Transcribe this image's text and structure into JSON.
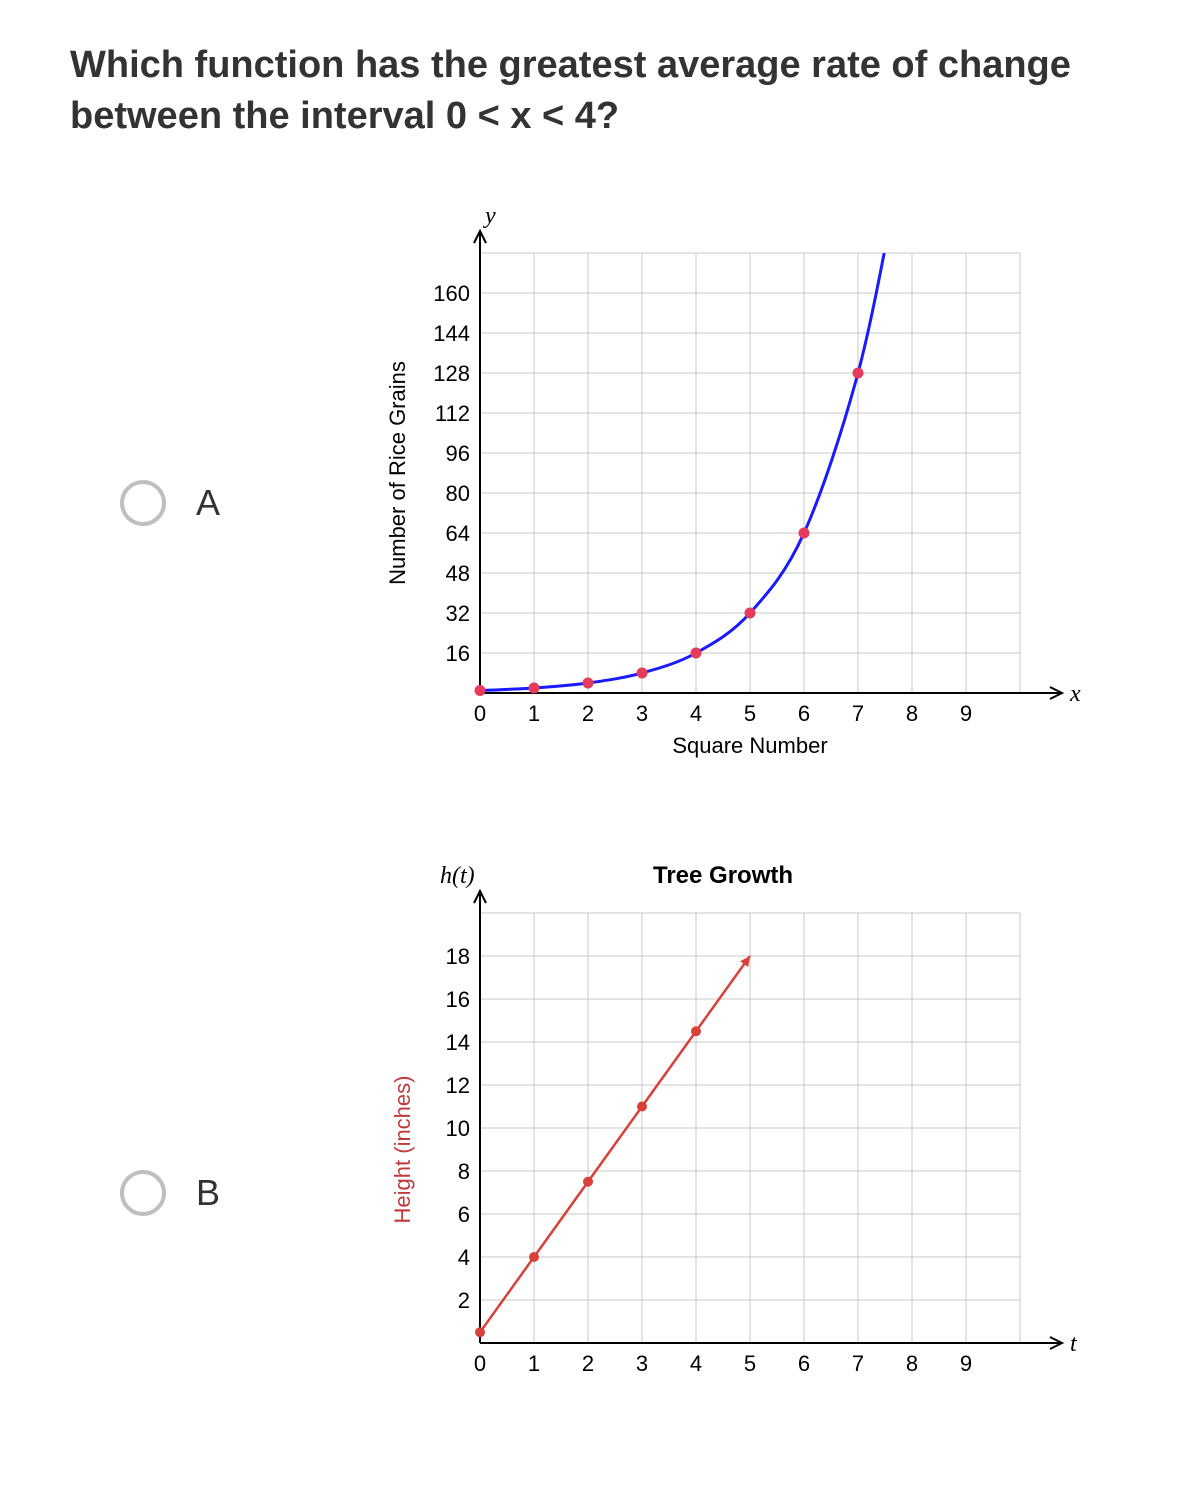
{
  "question": "Which function has the greatest average rate of change between the interval 0 < x < 4?",
  "options": {
    "A": {
      "label": "A"
    },
    "B": {
      "label": "B"
    }
  },
  "chartA": {
    "type": "line",
    "title": "",
    "y_axis_label_var": "y",
    "x_axis_label_var": "x",
    "y_axis_title": "Number of Rice Grains",
    "x_axis_title": "Square Number",
    "y_ticks": [
      16,
      32,
      48,
      64,
      80,
      96,
      112,
      128,
      144,
      160
    ],
    "x_ticks": [
      0,
      1,
      2,
      3,
      4,
      5,
      6,
      7,
      8,
      9
    ],
    "xlim": [
      0,
      10
    ],
    "ylim": [
      0,
      176
    ],
    "line_color": "#1a1aff",
    "line_width": 3,
    "point_color": "#e63b5a",
    "point_radius": 5,
    "grid_color": "#c8c8c8",
    "axis_color": "#000000",
    "tick_font_size": 22,
    "axis_title_font_size": 22,
    "data_points": [
      {
        "x": 0,
        "y": 1
      },
      {
        "x": 1,
        "y": 2
      },
      {
        "x": 2,
        "y": 4
      },
      {
        "x": 3,
        "y": 8
      },
      {
        "x": 4,
        "y": 16
      },
      {
        "x": 5,
        "y": 32
      },
      {
        "x": 6,
        "y": 64
      },
      {
        "x": 7,
        "y": 128
      }
    ],
    "curve_extra_end": {
      "x": 7.7,
      "y": 200
    }
  },
  "chartB": {
    "type": "line",
    "title": "Tree Growth",
    "y_axis_label_var": "h(t)",
    "x_axis_label_var": "t",
    "y_axis_title": "Height (inches)",
    "x_axis_title": "",
    "y_ticks": [
      2,
      4,
      6,
      8,
      10,
      12,
      14,
      16,
      18
    ],
    "x_ticks": [
      0,
      1,
      2,
      3,
      4,
      5,
      6,
      7,
      8,
      9
    ],
    "xlim": [
      0,
      10
    ],
    "ylim": [
      0,
      20
    ],
    "line_color": "#d9403a",
    "line_width": 2.5,
    "point_color": "#d9403a",
    "point_radius": 5,
    "grid_color": "#c8c8c8",
    "axis_color": "#000000",
    "tick_font_size": 22,
    "axis_title_font_size": 22,
    "title_font_size": 24,
    "data_points": [
      {
        "x": 0,
        "y": 0.5
      },
      {
        "x": 1,
        "y": 4
      },
      {
        "x": 2,
        "y": 7.5
      },
      {
        "x": 3,
        "y": 11
      },
      {
        "x": 4,
        "y": 14.5
      }
    ],
    "line_end": {
      "x": 5,
      "y": 18
    },
    "arrow_at_end": true
  },
  "colors": {
    "text": "#333333",
    "radio_border": "#bfbfbf",
    "background": "#ffffff"
  }
}
